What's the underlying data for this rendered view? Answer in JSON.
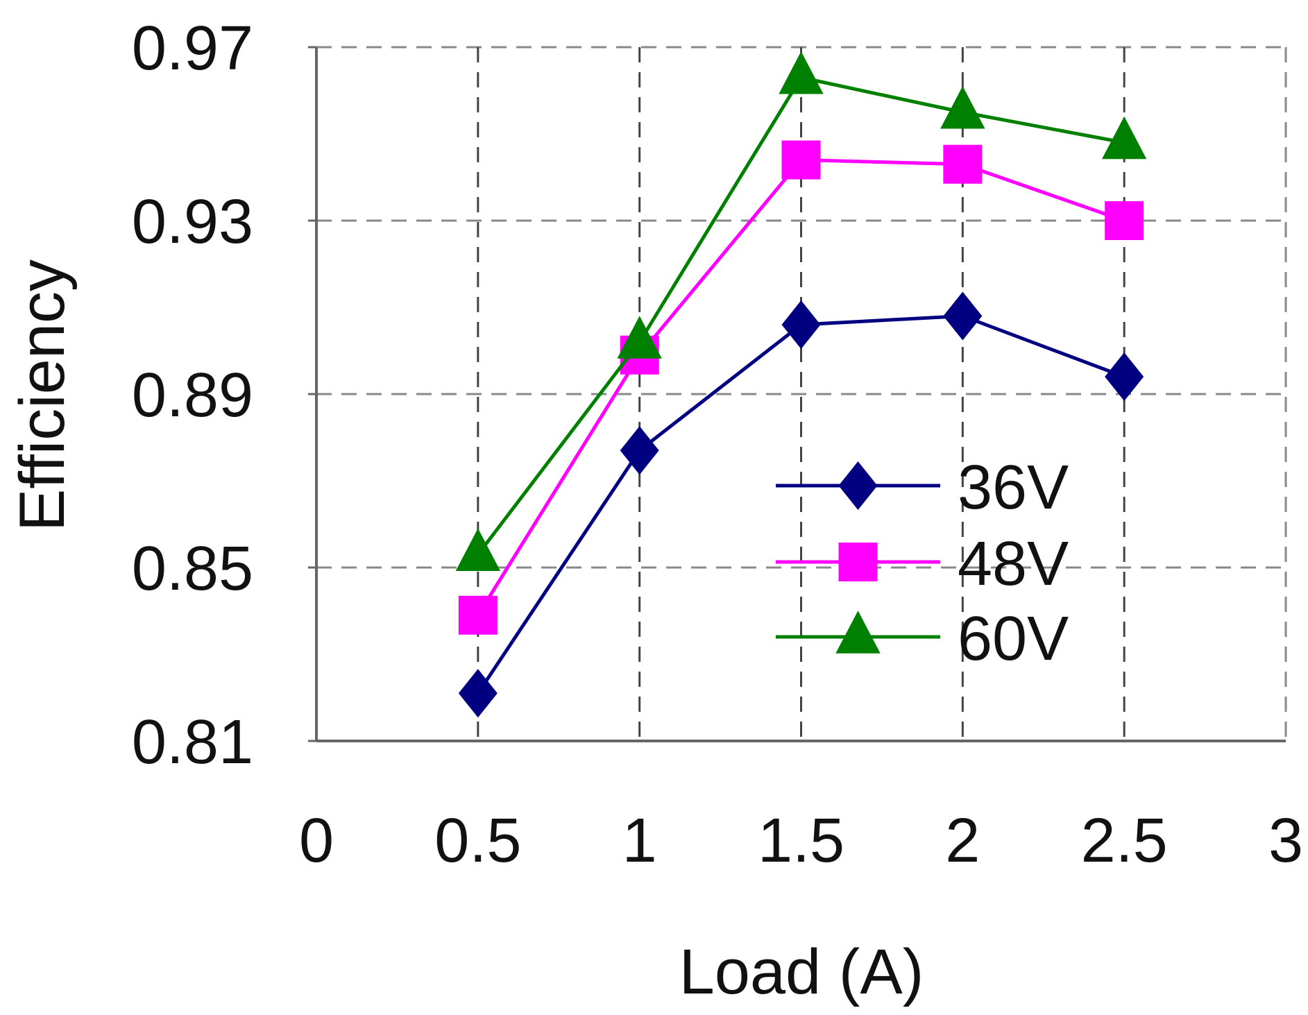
{
  "chart_data": {
    "type": "line",
    "title": "",
    "xlabel": "Load (A)",
    "ylabel": "Efficiency",
    "xlim": [
      0,
      3
    ],
    "ylim": [
      0.81,
      0.97
    ],
    "x_ticks": [
      "0",
      "0.5",
      "1",
      "1.5",
      "2",
      "2.5",
      "3"
    ],
    "y_ticks": [
      "0.97",
      "0.93",
      "0.89",
      "0.85",
      "0.81"
    ],
    "x_tick_values": [
      0,
      0.5,
      1,
      1.5,
      2,
      2.5,
      3
    ],
    "y_tick_values": [
      0.97,
      0.93,
      0.89,
      0.85,
      0.81
    ],
    "grid": true,
    "grid_style": "dashed",
    "legend_position": "lower-right",
    "x": [
      0.5,
      1,
      1.5,
      2,
      2.5
    ],
    "series": [
      {
        "name": "36V",
        "values": [
          0.821,
          0.877,
          0.906,
          0.908,
          0.894
        ],
        "color": "#000080",
        "marker": "diamond"
      },
      {
        "name": "48V",
        "values": [
          0.839,
          0.899,
          0.944,
          0.943,
          0.93
        ],
        "color": "#ff00ff",
        "marker": "square"
      },
      {
        "name": "60V",
        "values": [
          0.853,
          0.902,
          0.963,
          0.955,
          0.948
        ],
        "color": "#008000",
        "marker": "triangle"
      }
    ]
  }
}
